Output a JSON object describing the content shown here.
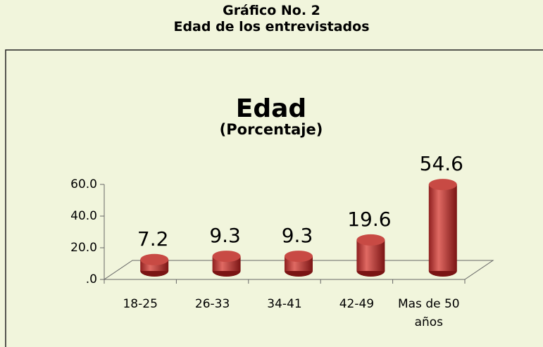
{
  "header": {
    "title": "Gráfico No. 2",
    "subtitle": "Edad de los entrevistados"
  },
  "chart_data": {
    "type": "bar",
    "title": "Edad",
    "subtitle": "(Porcentaje)",
    "categories": [
      "18-25",
      "26-33",
      "34-41",
      "42-49",
      "Mas de 50 años"
    ],
    "values": [
      7.2,
      9.3,
      9.3,
      19.6,
      54.6
    ],
    "color": "#c0392b",
    "ylim": [
      0,
      60
    ],
    "yticks": [
      {
        "value": 0,
        "label": ".0"
      },
      {
        "value": 20,
        "label": "20.0"
      },
      {
        "value": 40,
        "label": "40.0"
      },
      {
        "value": 60,
        "label": "60.0"
      }
    ]
  }
}
